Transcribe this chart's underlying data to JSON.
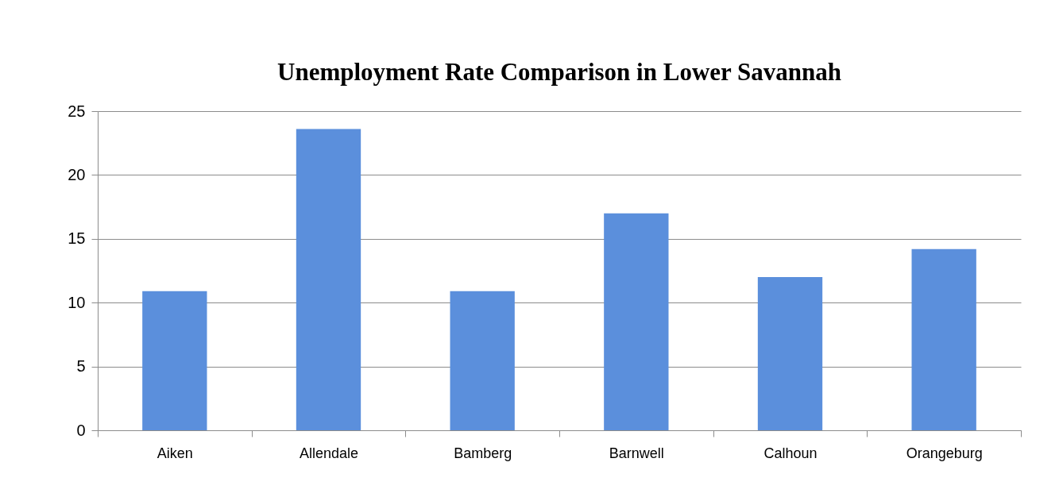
{
  "chart_data": {
    "type": "bar",
    "title": "Unemployment Rate Comparison in Lower Savannah",
    "categories": [
      "Aiken",
      "Allendale",
      "Bamberg",
      "Barnwell",
      "Calhoun",
      "Orangeburg"
    ],
    "values": [
      10.9,
      23.6,
      10.9,
      17.0,
      12.0,
      14.2
    ],
    "color": "#5b8fdc",
    "ylim": [
      0,
      25
    ],
    "yticks": [
      0,
      5,
      10,
      15,
      20,
      25
    ],
    "grid": "y"
  }
}
